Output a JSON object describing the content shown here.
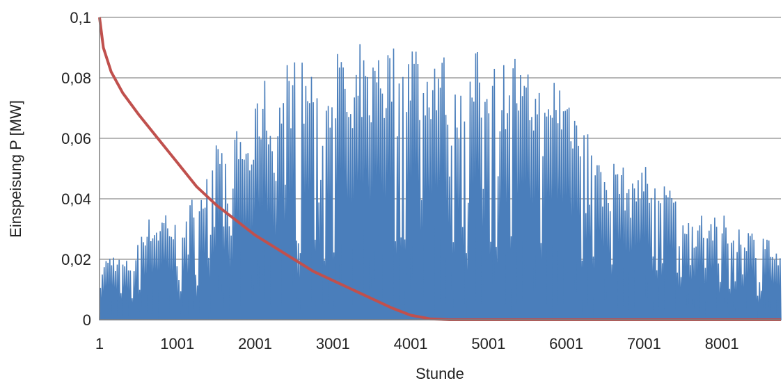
{
  "chart_data": {
    "type": "area",
    "xlabel": "Stunde",
    "ylabel": "Einspeisung P [MW]",
    "xlim": [
      1,
      8760
    ],
    "ylim": [
      0,
      0.1
    ],
    "x_ticks": [
      "1",
      "1001",
      "2001",
      "3001",
      "4001",
      "5001",
      "6001",
      "7001",
      "8001"
    ],
    "y_ticks": [
      "0",
      "0,02",
      "0,04",
      "0,06",
      "0,08",
      "0,1"
    ],
    "grid": "horizontal",
    "colors": {
      "hourly": "#4a7ebb",
      "sorted": "#c0504d",
      "grid": "#8c8c8c"
    },
    "series": [
      {
        "type": "area",
        "note_envelope": "daily maximum envelope of hourly feed-in",
        "x": [
          1,
          150,
          300,
          450,
          550,
          650,
          750,
          850,
          950,
          1050,
          1150,
          1250,
          1350,
          1450,
          1550,
          1650,
          1750,
          1850,
          1950,
          2050,
          2150,
          2250,
          2350,
          2450,
          2550,
          2650,
          2750,
          2850,
          2950,
          3050,
          3150,
          3250,
          3350,
          3450,
          3550,
          3600,
          3650,
          3750,
          3850,
          3950,
          4050,
          4150,
          4250,
          4350,
          4450,
          4550,
          4650,
          4750,
          4850,
          4950,
          5050,
          5150,
          5250,
          5350,
          5450,
          5550,
          5650,
          5750,
          5850,
          5950,
          6050,
          6150,
          6250,
          6350,
          6450,
          6550,
          6650,
          6750,
          6850,
          6950,
          7050,
          7150,
          7250,
          7350,
          7450,
          7550,
          7650,
          7750,
          7850,
          7950,
          8050,
          8150,
          8250,
          8350,
          8450,
          8550,
          8650,
          8760
        ],
        "values": [
          0.018,
          0.023,
          0.02,
          0.02,
          0.033,
          0.034,
          0.033,
          0.038,
          0.032,
          0.034,
          0.038,
          0.045,
          0.047,
          0.05,
          0.066,
          0.052,
          0.063,
          0.064,
          0.06,
          0.078,
          0.081,
          0.058,
          0.085,
          0.087,
          0.088,
          0.085,
          0.086,
          0.06,
          0.085,
          0.09,
          0.088,
          0.07,
          0.092,
          0.085,
          0.09,
          0.1,
          0.085,
          0.097,
          0.08,
          0.095,
          0.097,
          0.084,
          0.09,
          0.093,
          0.088,
          0.075,
          0.085,
          0.082,
          0.09,
          0.085,
          0.095,
          0.085,
          0.088,
          0.09,
          0.08,
          0.083,
          0.079,
          0.07,
          0.085,
          0.079,
          0.078,
          0.07,
          0.075,
          0.065,
          0.05,
          0.048,
          0.056,
          0.05,
          0.045,
          0.055,
          0.05,
          0.045,
          0.05,
          0.042,
          0.045,
          0.035,
          0.032,
          0.038,
          0.035,
          0.033,
          0.035,
          0.03,
          0.032,
          0.031,
          0.028,
          0.03,
          0.025,
          0.02
        ]
      },
      {
        "type": "line",
        "note_curve": "sorted duration curve",
        "x": [
          1,
          50,
          150,
          300,
          500,
          750,
          1000,
          1250,
          1500,
          1750,
          2000,
          2250,
          2500,
          2750,
          3000,
          3250,
          3500,
          3750,
          4000,
          4250,
          4500,
          4750,
          5000,
          6000,
          7000,
          8000,
          8760
        ],
        "values": [
          0.1,
          0.09,
          0.082,
          0.075,
          0.068,
          0.06,
          0.052,
          0.044,
          0.038,
          0.033,
          0.028,
          0.024,
          0.02,
          0.016,
          0.013,
          0.01,
          0.007,
          0.004,
          0.0015,
          0.0003,
          0.0,
          0.0,
          0.0,
          0.0,
          0.0,
          0.0,
          0.0
        ]
      }
    ]
  }
}
